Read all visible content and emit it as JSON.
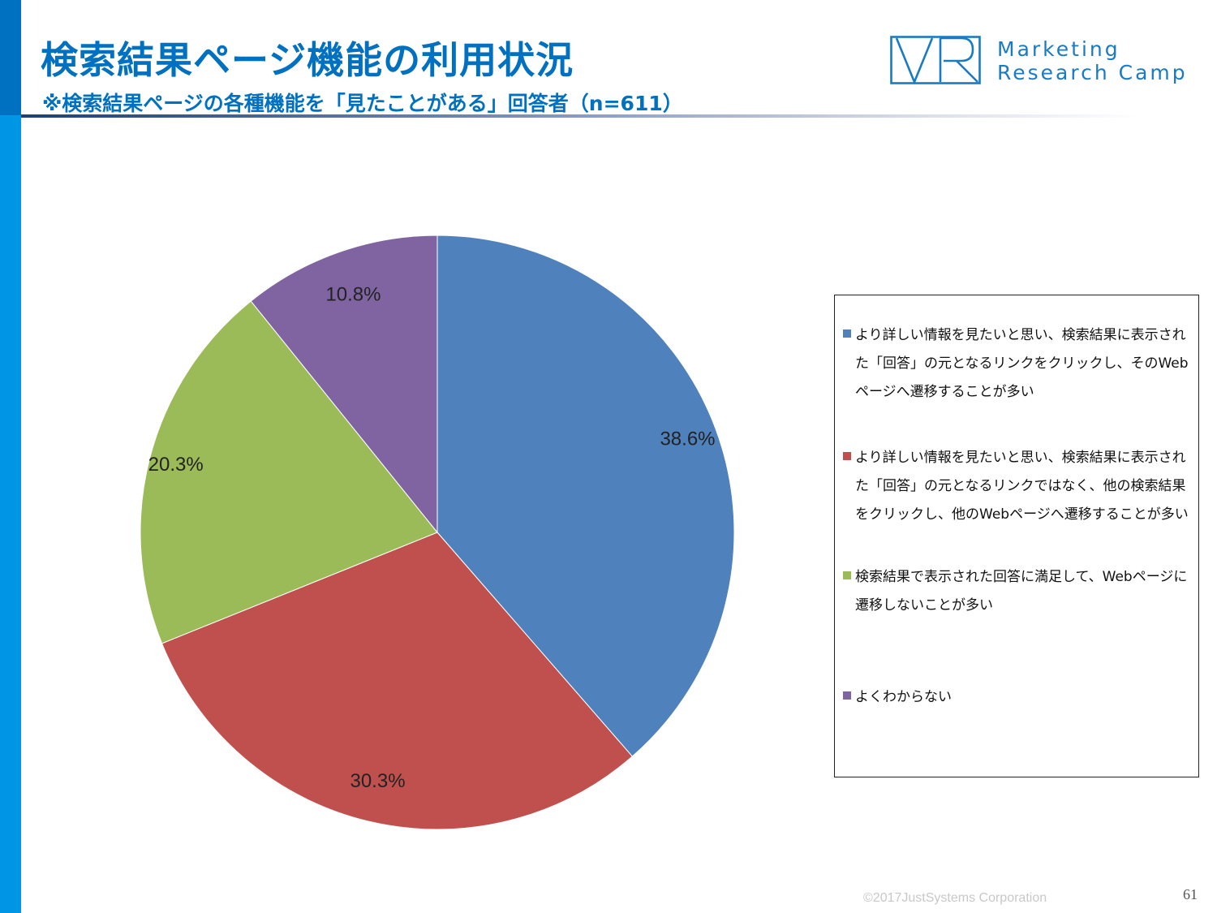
{
  "header": {
    "title": "検索結果ページ機能の利用状況",
    "subtitle": "※検索結果ページの各種機能を「見たことがある」回答者（n=611）"
  },
  "logo": {
    "line1": "Marketing",
    "line2": "Research Camp",
    "color": "#1a7ac2"
  },
  "chart_data": {
    "type": "pie",
    "title": "",
    "slices": [
      {
        "label": "より詳しい情報を見たいと思い、検索結果に表示された「回答」の元となるリンクをクリックし、そのWebページへ遷移することが多い",
        "value": 38.6,
        "display": "38.6%",
        "color": "#4f81bd"
      },
      {
        "label": "より詳しい情報を見たいと思い、検索結果に表示された「回答」の元となるリンクではなく、他の検索結果をクリックし、他のWebページへ遷移することが多い",
        "value": 30.3,
        "display": "30.3%",
        "color": "#c0504d"
      },
      {
        "label": "検索結果で表示された回答に満足して、Webページに遷移しないことが多い",
        "value": 20.3,
        "display": "20.3%",
        "color": "#9bbb59"
      },
      {
        "label": "よくわからない",
        "value": 10.8,
        "display": "10.8%",
        "color": "#8064a2"
      }
    ],
    "legend_position": "right",
    "start_angle": "12 o'clock, clockwise"
  },
  "footer": {
    "copyright": "©2017JustSystems Corporation",
    "page_number": "61"
  }
}
